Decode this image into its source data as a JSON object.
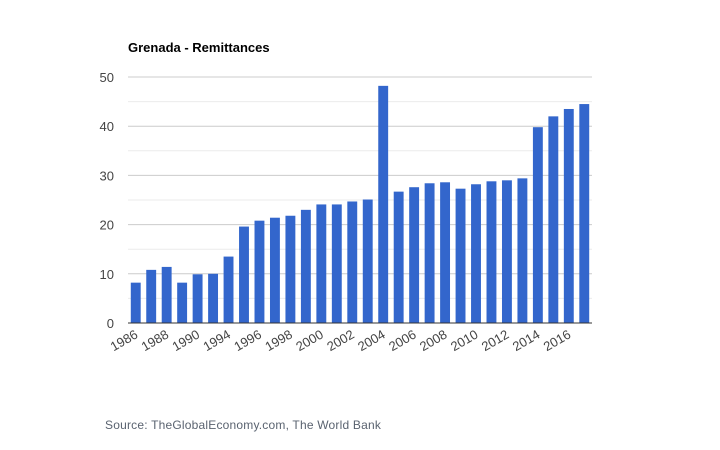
{
  "chart_data": {
    "type": "bar",
    "title": "Grenada - Remittances",
    "xlabel": "",
    "ylabel": "",
    "ylim": [
      0,
      50
    ],
    "yticks": [
      0,
      10,
      20,
      30,
      40,
      50
    ],
    "minor_gridlines": [
      5,
      15,
      25,
      35,
      45
    ],
    "grid": true,
    "legend": "none",
    "bar_color": "#3366cc",
    "categories": [
      "1986",
      "1987",
      "1988",
      "1989",
      "1990",
      "1991",
      "1994",
      "1995",
      "1996",
      "1997",
      "1998",
      "1999",
      "2000",
      "2001",
      "2002",
      "2003",
      "2004",
      "2005",
      "2006",
      "2007",
      "2008",
      "2009",
      "2010",
      "2011",
      "2012",
      "2013",
      "2014",
      "2015",
      "2016",
      "2017"
    ],
    "xtick_labels": [
      "1986",
      "1988",
      "1990",
      "1994",
      "1996",
      "1998",
      "2000",
      "2002",
      "2004",
      "2006",
      "2008",
      "2010",
      "2012",
      "2014",
      "2016"
    ],
    "values": [
      8.2,
      10.8,
      11.4,
      8.2,
      9.9,
      10.0,
      13.5,
      19.6,
      20.8,
      21.4,
      21.8,
      23.0,
      24.1,
      24.1,
      24.7,
      25.1,
      48.2,
      26.7,
      27.6,
      28.4,
      28.6,
      27.3,
      28.2,
      28.8,
      29.0,
      29.4,
      39.8,
      42.0,
      43.5,
      44.5
    ]
  },
  "footer": {
    "source": "Source: TheGlobalEconomy.com, The World Bank"
  }
}
